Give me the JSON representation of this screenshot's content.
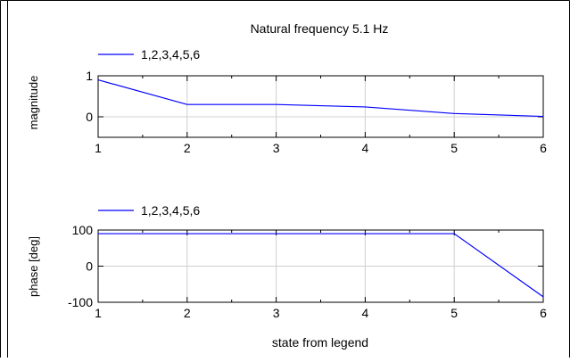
{
  "chart_data": [
    {
      "type": "line",
      "title": "Natural frequency 5.1 Hz",
      "ylabel": "magnitude",
      "xlabel": "",
      "xlim": [
        1,
        6
      ],
      "ylim": [
        -0.5,
        1
      ],
      "xticks": [
        1,
        2,
        3,
        4,
        5,
        6
      ],
      "xtick_labels": [
        "1",
        "2",
        "3",
        "4",
        "5",
        "6"
      ],
      "yticks": [
        0,
        1
      ],
      "ytick_labels": [
        "0",
        "1"
      ],
      "grid": true,
      "legend_position": "top-left",
      "series": [
        {
          "name": "1,2,3,4,5,6",
          "color": "#0000ff",
          "x": [
            1,
            2,
            3,
            4,
            5,
            6
          ],
          "y": [
            0.9,
            0.3,
            0.3,
            0.24,
            0.08,
            0.01
          ]
        }
      ]
    },
    {
      "type": "line",
      "title": "",
      "ylabel": "phase [deg]",
      "xlabel": "state from legend",
      "xlim": [
        1,
        6
      ],
      "ylim": [
        -100,
        100
      ],
      "xticks": [
        1,
        2,
        3,
        4,
        5,
        6
      ],
      "xtick_labels": [
        "1",
        "2",
        "3",
        "4",
        "5",
        "6"
      ],
      "yticks": [
        -100,
        0,
        100
      ],
      "ytick_labels": [
        "-100",
        "0",
        "100"
      ],
      "grid": true,
      "legend_position": "top-left",
      "series": [
        {
          "name": "1,2,3,4,5,6",
          "color": "#0000ff",
          "x": [
            1,
            2,
            3,
            4,
            5,
            6
          ],
          "y": [
            90,
            90,
            90,
            90,
            90,
            -85
          ]
        }
      ]
    }
  ]
}
